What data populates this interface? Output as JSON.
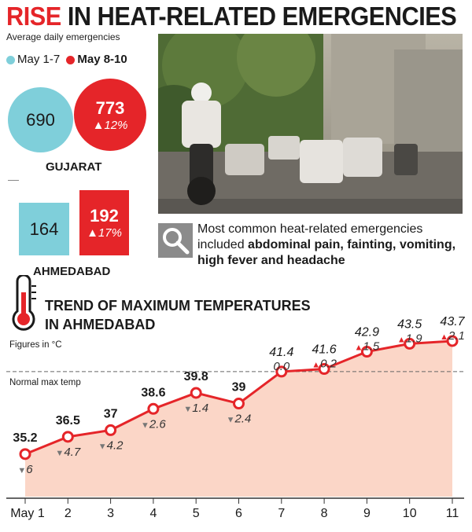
{
  "header": {
    "title_highlight": "RISE",
    "title_rest": " IN HEAT-RELATED EMERGENCIES",
    "subtitle": "Average daily emergencies"
  },
  "legend": {
    "period1": "May 1-7",
    "period2": "May 8-10"
  },
  "colors": {
    "period1": "#7fcfda",
    "period2": "#e52529",
    "area": "#fbd6c7",
    "line": "#e52529"
  },
  "gujarat": {
    "label": "GUJARAT",
    "v1": "690",
    "v2": "773",
    "change": "▲12%"
  },
  "ahmedabad": {
    "label": "AHMEDABAD",
    "v1": "164",
    "v2": "192",
    "change": "▲17%"
  },
  "note": {
    "icon": "search-icon",
    "text_plain": "Most common heat-related emergencies included ",
    "text_bold": "abdominal pain, fainting, vomiting, high fever and headache"
  },
  "trend": {
    "title_line1": "TREND OF MAXIMUM TEMPERATURES",
    "title_line2": "IN AHMEDABAD",
    "figures_note": "Figures in °C",
    "normal_label": "Normal max temp"
  },
  "chart_data": {
    "type": "area",
    "title": "TREND OF MAXIMUM TEMPERATURES IN AHMEDABAD",
    "unit": "°C",
    "categories": [
      "May 1",
      "2",
      "3",
      "4",
      "5",
      "6",
      "7",
      "8",
      "9",
      "10",
      "11"
    ],
    "values": [
      35.2,
      36.5,
      37,
      38.6,
      39.8,
      39,
      41.4,
      41.6,
      42.9,
      43.5,
      43.7
    ],
    "value_labels": [
      "35.2",
      "36.5",
      "37",
      "38.6",
      "39.8",
      "39",
      "41.4",
      "41.6",
      "42.9",
      "43.5",
      "43.7"
    ],
    "value_bold": [
      true,
      true,
      true,
      true,
      true,
      true,
      false,
      false,
      false,
      false,
      false
    ],
    "deviation_labels": [
      "▼6",
      "▼4.7",
      "▼4.2",
      "▼2.6",
      "▼1.4",
      "▼2.4",
      "0.0",
      "▲0.2",
      "▲1.5",
      "▲1.9",
      "▲2.1"
    ],
    "normal_max_temp": 41.4,
    "ylim": [
      32,
      45
    ]
  }
}
